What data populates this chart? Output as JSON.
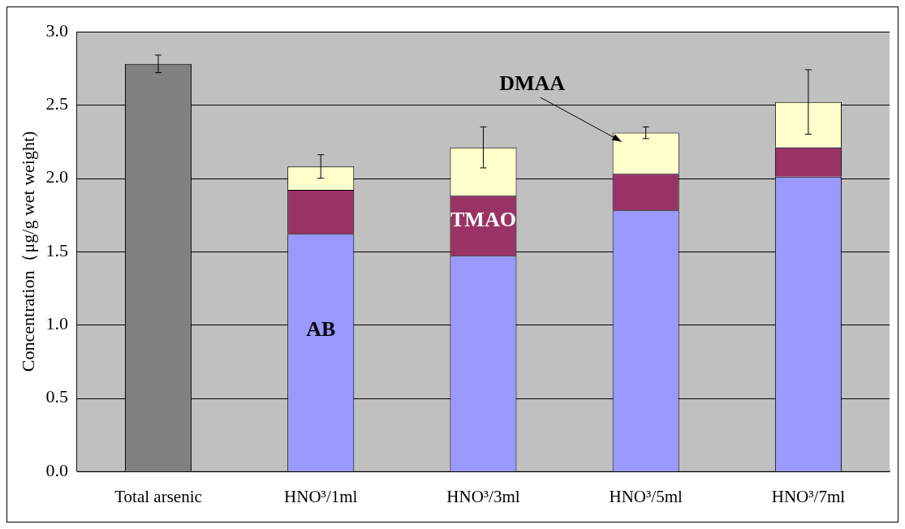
{
  "chart_data": {
    "type": "bar",
    "stacked": true,
    "ylabel": "Concentration（μg/g wet weight)",
    "categories": [
      "Total arsenic",
      "HNO³/1ml",
      "HNO³/3ml",
      "HNO³/5ml",
      "HNO³/7ml"
    ],
    "series": [
      {
        "color": "#808080",
        "values": [
          2.78,
          null,
          null,
          null,
          null
        ],
        "errors": [
          0.06,
          null,
          null,
          null,
          null
        ]
      },
      {
        "color": "#9999ff",
        "values": [
          null,
          1.62,
          1.47,
          1.78,
          2.01
        ]
      },
      {
        "color": "#993366",
        "values": [
          null,
          0.3,
          0.41,
          0.25,
          0.2
        ]
      },
      {
        "color": "#ffffcc",
        "values": [
          null,
          0.16,
          0.33,
          0.28,
          0.31
        ],
        "errors": [
          null,
          0.08,
          0.14,
          0.04,
          0.22
        ]
      }
    ],
    "ylim": [
      0,
      3
    ],
    "yticks": [
      {
        "value": 0,
        "label": "0.0"
      },
      0.5,
      {
        "value": 1,
        "label": "1.0"
      },
      1.5,
      {
        "value": 2,
        "label": "2.0"
      },
      2.5,
      {
        "value": 3,
        "label": "3.0"
      }
    ],
    "grid": "y",
    "legend": false,
    "annotations": [
      "AB",
      "TMAO",
      "DMAA"
    ]
  }
}
